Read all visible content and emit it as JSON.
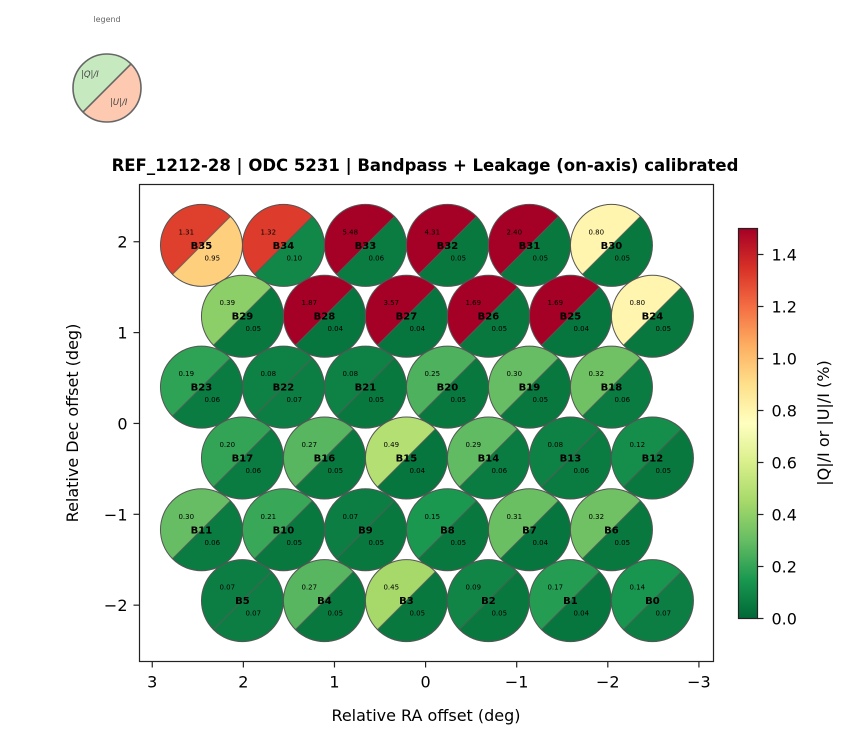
{
  "chart_data": {
    "type": "scatter",
    "title": "REF_1212-28  |  ODC 5231  |  Bandpass + Leakage (on-axis) calibrated",
    "xlabel": "Relative RA offset (deg)",
    "ylabel": "Relative Dec offset (deg)",
    "xlim": [
      3.14,
      -3.16
    ],
    "ylim": [
      -2.62,
      2.63
    ],
    "xticks": [
      3,
      2,
      1,
      0,
      -1,
      -2,
      -3
    ],
    "xtick_labels": [
      "3",
      "2",
      "1",
      "0",
      "−1",
      "−2",
      "−3"
    ],
    "yticks": [
      2,
      1,
      0,
      -1,
      -2
    ],
    "ytick_labels": [
      "2",
      "1",
      "0",
      "−1",
      "−2"
    ],
    "grid": false,
    "beam_radius_deg": 0.45,
    "colorbar": {
      "label": "|Q|/I  or  |U|/I  (%)",
      "range": [
        0.0,
        1.5
      ],
      "ticks": [
        0.0,
        0.2,
        0.4,
        0.6,
        0.8,
        1.0,
        1.2,
        1.4
      ],
      "tick_labels": [
        "0.0",
        "0.2",
        "0.4",
        "0.6",
        "0.8",
        "1.0",
        "1.2",
        "1.4"
      ],
      "colormap": "RdYlGn_r"
    },
    "legend": {
      "title": "legend",
      "q_label": "|Q|/I",
      "u_label": "|U|/I",
      "q_color": "#c7e9c0",
      "u_color": "#fdc9b0"
    },
    "beams": [
      {
        "name": "B35",
        "ra": 2.46,
        "dec": 1.96,
        "q": 1.31,
        "u": 0.95,
        "q_label": "1.31",
        "u_label": "0.95"
      },
      {
        "name": "B34",
        "ra": 1.56,
        "dec": 1.96,
        "q": 1.32,
        "u": 0.1,
        "q_label": "1.32",
        "u_label": "0.10"
      },
      {
        "name": "B33",
        "ra": 0.66,
        "dec": 1.96,
        "q": 5.48,
        "u": 0.06,
        "q_label": "5.48",
        "u_label": "0.06"
      },
      {
        "name": "B32",
        "ra": -0.24,
        "dec": 1.96,
        "q": 4.31,
        "u": 0.05,
        "q_label": "4.31",
        "u_label": "0.05"
      },
      {
        "name": "B31",
        "ra": -1.14,
        "dec": 1.96,
        "q": 2.4,
        "u": 0.05,
        "q_label": "2.40",
        "u_label": "0.05"
      },
      {
        "name": "B30",
        "ra": -2.04,
        "dec": 1.96,
        "q": 0.8,
        "u": 0.05,
        "q_label": "0.80",
        "u_label": "0.05"
      },
      {
        "name": "B29",
        "ra": 2.01,
        "dec": 1.18,
        "q": 0.39,
        "u": 0.05,
        "q_label": "0.39",
        "u_label": "0.05"
      },
      {
        "name": "B28",
        "ra": 1.11,
        "dec": 1.18,
        "q": 1.87,
        "u": 0.04,
        "q_label": "1.87",
        "u_label": "0.04"
      },
      {
        "name": "B27",
        "ra": 0.21,
        "dec": 1.18,
        "q": 3.57,
        "u": 0.04,
        "q_label": "3.57",
        "u_label": "0.04"
      },
      {
        "name": "B26",
        "ra": -0.69,
        "dec": 1.18,
        "q": 1.69,
        "u": 0.05,
        "q_label": "1.69",
        "u_label": "0.05"
      },
      {
        "name": "B25",
        "ra": -1.59,
        "dec": 1.18,
        "q": 1.69,
        "u": 0.04,
        "q_label": "1.69",
        "u_label": "0.04"
      },
      {
        "name": "B24",
        "ra": -2.49,
        "dec": 1.18,
        "q": 0.8,
        "u": 0.05,
        "q_label": "0.80",
        "u_label": "0.05"
      },
      {
        "name": "B23",
        "ra": 2.46,
        "dec": 0.4,
        "q": 0.19,
        "u": 0.06,
        "q_label": "0.19",
        "u_label": "0.06"
      },
      {
        "name": "B22",
        "ra": 1.56,
        "dec": 0.4,
        "q": 0.08,
        "u": 0.07,
        "q_label": "0.08",
        "u_label": "0.07"
      },
      {
        "name": "B21",
        "ra": 0.66,
        "dec": 0.4,
        "q": 0.08,
        "u": 0.05,
        "q_label": "0.08",
        "u_label": "0.05"
      },
      {
        "name": "B20",
        "ra": -0.24,
        "dec": 0.4,
        "q": 0.25,
        "u": 0.05,
        "q_label": "0.25",
        "u_label": "0.05"
      },
      {
        "name": "B19",
        "ra": -1.14,
        "dec": 0.4,
        "q": 0.3,
        "u": 0.05,
        "q_label": "0.30",
        "u_label": "0.05"
      },
      {
        "name": "B18",
        "ra": -2.04,
        "dec": 0.4,
        "q": 0.32,
        "u": 0.06,
        "q_label": "0.32",
        "u_label": "0.06"
      },
      {
        "name": "B17",
        "ra": 2.01,
        "dec": -0.38,
        "q": 0.2,
        "u": 0.06,
        "q_label": "0.20",
        "u_label": "0.06"
      },
      {
        "name": "B16",
        "ra": 1.11,
        "dec": -0.38,
        "q": 0.27,
        "u": 0.05,
        "q_label": "0.27",
        "u_label": "0.05"
      },
      {
        "name": "B15",
        "ra": 0.21,
        "dec": -0.38,
        "q": 0.49,
        "u": 0.04,
        "q_label": "0.49",
        "u_label": "0.04"
      },
      {
        "name": "B14",
        "ra": -0.69,
        "dec": -0.38,
        "q": 0.29,
        "u": 0.06,
        "q_label": "0.29",
        "u_label": "0.06"
      },
      {
        "name": "B13",
        "ra": -1.59,
        "dec": -0.38,
        "q": 0.08,
        "u": 0.06,
        "q_label": "0.08",
        "u_label": "0.06"
      },
      {
        "name": "B12",
        "ra": -2.49,
        "dec": -0.38,
        "q": 0.12,
        "u": 0.05,
        "q_label": "0.12",
        "u_label": "0.05"
      },
      {
        "name": "B11",
        "ra": 2.46,
        "dec": -1.17,
        "q": 0.3,
        "u": 0.06,
        "q_label": "0.30",
        "u_label": "0.06"
      },
      {
        "name": "B10",
        "ra": 1.56,
        "dec": -1.17,
        "q": 0.21,
        "u": 0.05,
        "q_label": "0.21",
        "u_label": "0.05"
      },
      {
        "name": "B9",
        "ra": 0.66,
        "dec": -1.17,
        "q": 0.07,
        "u": 0.05,
        "q_label": "0.07",
        "u_label": "0.05"
      },
      {
        "name": "B8",
        "ra": -0.24,
        "dec": -1.17,
        "q": 0.15,
        "u": 0.05,
        "q_label": "0.15",
        "u_label": "0.05"
      },
      {
        "name": "B7",
        "ra": -1.14,
        "dec": -1.17,
        "q": 0.31,
        "u": 0.04,
        "q_label": "0.31",
        "u_label": "0.04"
      },
      {
        "name": "B6",
        "ra": -2.04,
        "dec": -1.17,
        "q": 0.32,
        "u": 0.05,
        "q_label": "0.32",
        "u_label": "0.05"
      },
      {
        "name": "B5",
        "ra": 2.01,
        "dec": -1.95,
        "q": 0.07,
        "u": 0.07,
        "q_label": "0.07",
        "u_label": "0.07"
      },
      {
        "name": "B4",
        "ra": 1.11,
        "dec": -1.95,
        "q": 0.27,
        "u": 0.05,
        "q_label": "0.27",
        "u_label": "0.05"
      },
      {
        "name": "B3",
        "ra": 0.21,
        "dec": -1.95,
        "q": 0.45,
        "u": 0.05,
        "q_label": "0.45",
        "u_label": "0.05"
      },
      {
        "name": "B2",
        "ra": -0.69,
        "dec": -1.95,
        "q": 0.09,
        "u": 0.05,
        "q_label": "0.09",
        "u_label": "0.05"
      },
      {
        "name": "B1",
        "ra": -1.59,
        "dec": -1.95,
        "q": 0.17,
        "u": 0.04,
        "q_label": "0.17",
        "u_label": "0.04"
      },
      {
        "name": "B0",
        "ra": -2.49,
        "dec": -1.95,
        "q": 0.14,
        "u": 0.07,
        "q_label": "0.14",
        "u_label": "0.07"
      }
    ]
  }
}
